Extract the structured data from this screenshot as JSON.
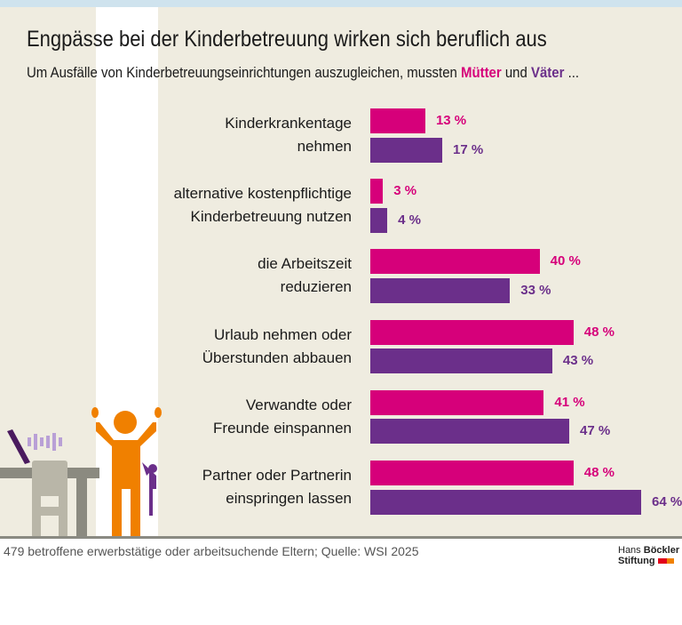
{
  "title": "Engpässe bei der Kinderbetreuung wirken sich beruflich aus",
  "subtitle": {
    "prefix": "Um Ausfälle von Kinderbetreuungseinrichtungen auszugleichen, mussten ",
    "mothers": "Mütter",
    "and": " und ",
    "fathers": "Väter",
    "suffix": " ..."
  },
  "colors": {
    "mothers": "#d6007a",
    "fathers": "#6b2f8a"
  },
  "chart_data": {
    "type": "bar",
    "orientation": "horizontal",
    "categories": [
      [
        "Kinderkrankentage",
        "nehmen"
      ],
      [
        "alternative kostenpflichtige",
        "Kinderbetreuung nutzen"
      ],
      [
        "die Arbeitszeit",
        "reduzieren"
      ],
      [
        "Urlaub nehmen oder",
        "Überstunden abbauen"
      ],
      [
        "Verwandte oder",
        "Freunde einspannen"
      ],
      [
        "Partner oder Partnerin",
        "einspringen lassen"
      ]
    ],
    "series": [
      {
        "name": "Mütter",
        "values": [
          13,
          3,
          40,
          48,
          41,
          48
        ]
      },
      {
        "name": "Väter",
        "values": [
          17,
          4,
          33,
          43,
          47,
          64
        ]
      }
    ],
    "unit": "%",
    "xlim": [
      0,
      64
    ],
    "grid": false
  },
  "source": "479 betroffene erwerbstätige oder arbeitsuchende Eltern; Quelle: WSI 2025",
  "logo": {
    "line1a": "Hans ",
    "line1b": "Böckler",
    "line2": "Stiftung"
  }
}
